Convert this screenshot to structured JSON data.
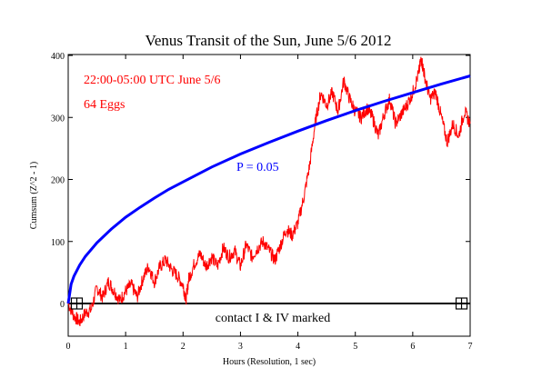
{
  "chart_data": {
    "type": "line",
    "title": "Venus Transit of the Sun, June 5/6 2012",
    "xlabel": "Hours (Resolution, 1 sec)",
    "ylabel": "Cumsum (Z^2 - 1)",
    "xlim": [
      0,
      7
    ],
    "ylim": [
      -50,
      400
    ],
    "x_ticks": [
      "0",
      "1",
      "2",
      "3",
      "4",
      "5",
      "6",
      "7"
    ],
    "y_ticks": [
      "0",
      "100",
      "200",
      "300",
      "400"
    ],
    "annotations": {
      "time_range": "22:00-05:00 UTC June 5/6",
      "eggs": "64 Eggs",
      "probability": "P = 0.05",
      "contacts": "contact I & IV marked"
    },
    "contact_markers_hours": [
      0.15,
      6.85
    ],
    "colors": {
      "cumsum": "#ff0000",
      "probability": "#0000ff",
      "axis": "#000000"
    },
    "series": [
      {
        "x": [
          0,
          0.1,
          0.2,
          0.3,
          0.4,
          0.5,
          0.6,
          0.7,
          0.8,
          0.9,
          1.0,
          1.1,
          1.2,
          1.3,
          1.4,
          1.5,
          1.6,
          1.7,
          1.8,
          1.9,
          2.0,
          2.05,
          2.1,
          2.2,
          2.3,
          2.4,
          2.5,
          2.6,
          2.7,
          2.8,
          2.9,
          3.0,
          3.1,
          3.2,
          3.3,
          3.4,
          3.5,
          3.6,
          3.7,
          3.8,
          3.9,
          4.0,
          4.1,
          4.2,
          4.3,
          4.4,
          4.5,
          4.6,
          4.7,
          4.8,
          4.9,
          5.0,
          5.1,
          5.2,
          5.3,
          5.4,
          5.5,
          5.6,
          5.7,
          5.8,
          5.9,
          6.0,
          6.1,
          6.15,
          6.2,
          6.3,
          6.4,
          6.5,
          6.6,
          6.7,
          6.8,
          6.9,
          7.0
        ],
        "values": [
          0,
          -20,
          -30,
          -15,
          -10,
          25,
          10,
          35,
          20,
          5,
          20,
          30,
          10,
          40,
          60,
          35,
          60,
          70,
          55,
          45,
          30,
          5,
          40,
          65,
          80,
          60,
          75,
          60,
          90,
          75,
          85,
          60,
          95,
          75,
          90,
          100,
          85,
          70,
          95,
          120,
          110,
          130,
          170,
          220,
          290,
          340,
          320,
          340,
          310,
          360,
          330,
          310,
          300,
          315,
          300,
          270,
          305,
          330,
          290,
          305,
          320,
          340,
          370,
          395,
          370,
          330,
          340,
          300,
          260,
          290,
          270,
          310,
          290
        ]
      },
      {
        "name": "P = 0.05",
        "x": [
          0,
          0.05,
          0.1,
          0.2,
          0.3,
          0.5,
          0.75,
          1.0,
          1.25,
          1.5,
          1.75,
          2.0,
          2.5,
          3.0,
          3.5,
          4.0,
          4.5,
          5.0,
          5.5,
          6.0,
          6.5,
          7.0
        ],
        "values": [
          0,
          31,
          44,
          62,
          76,
          98,
          120,
          139,
          155,
          170,
          184,
          196,
          220,
          241,
          260,
          278,
          295,
          311,
          326,
          340,
          354,
          367
        ]
      }
    ]
  }
}
